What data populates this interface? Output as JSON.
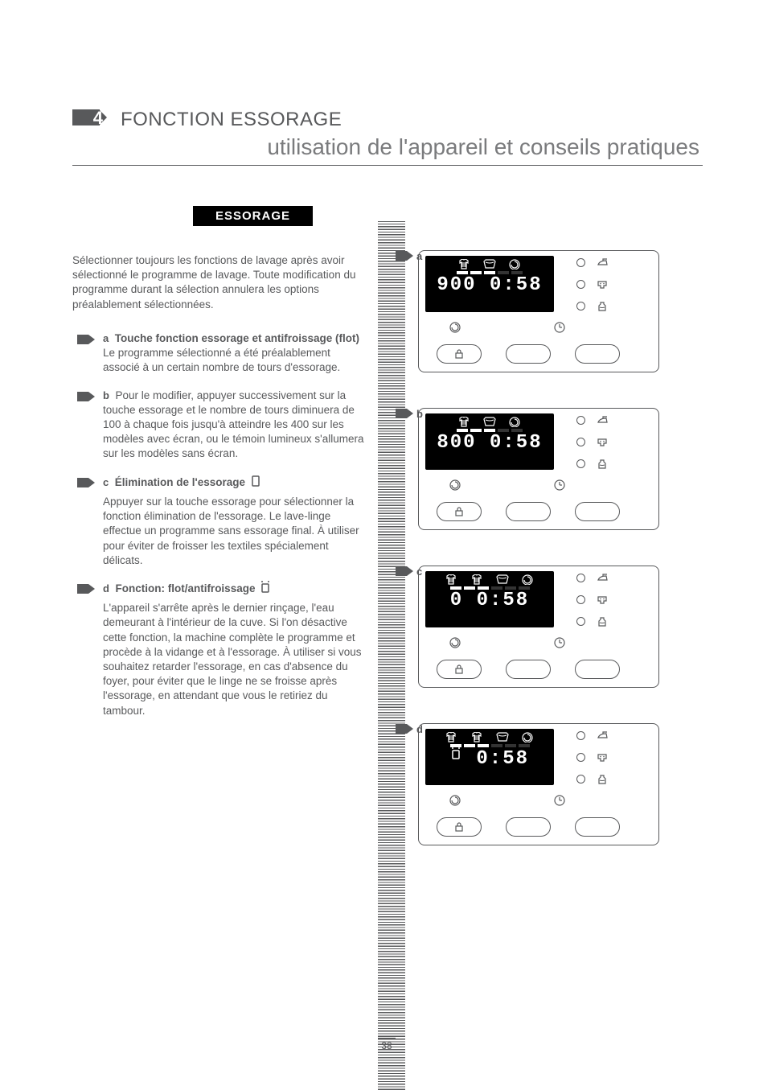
{
  "header": {
    "section_number": "4",
    "section_title": "FONCTION ESSORAGE",
    "subtitle": "utilisation de l'appareil et conseils pratiques"
  },
  "pill_label": "ESSORAGE",
  "intro": "Sélectionner toujours les fonctions de lavage après avoir sélectionné le programme de lavage. Toute modification du programme durant la sélection annulera les options préalablement sélectionnées.",
  "items": [
    {
      "letter": "a",
      "title": "Touche fonction essorage et antifroissage (flot)",
      "body": "Le programme sélectionné a été préalablement associé à un certain nombre de tours d'essorage."
    },
    {
      "letter": "b",
      "title": "",
      "body": "Pour le modifier, appuyer successivement sur la touche essorage et le nombre de tours diminuera de 100 à chaque fois jusqu'à atteindre les 400 sur les modèles avec écran, ou le témoin lumineux s'allumera sur les modèles sans écran."
    },
    {
      "letter": "c",
      "title": "Élimination de l'essorage",
      "icon": "no-spin",
      "body": "Appuyer sur la touche essorage pour sélectionner la fonction élimination de l'essorage. Le lave-linge effectue un programme sans essorage final. À utiliser pour éviter de froisser les textiles spécialement délicats."
    },
    {
      "letter": "d",
      "title": "Fonction: flot/antifroissage",
      "icon": "flot",
      "body": "L'appareil s'arrête après le dernier rinçage, l'eau demeurant à l'intérieur de la cuve. Si l'on désactive cette fonction, la machine complète le programme et procède à la vidange et à l'essorage. À utiliser si vous souhaitez retarder l'essorage, en cas d'absence du foyer, pour éviter que le linge ne se froisse après l'essorage, en attendant que vous le retiriez du tambour."
    }
  ],
  "panels": [
    {
      "letter": "a",
      "lcd_value": "900",
      "lcd_time": "0:58",
      "icon_count": 3
    },
    {
      "letter": "b",
      "lcd_value": "800",
      "lcd_time": "0:58",
      "icon_count": 3
    },
    {
      "letter": "c",
      "lcd_value": "0",
      "lcd_time": "0:58",
      "icon_count": 4
    },
    {
      "letter": "d",
      "lcd_value": "H",
      "lcd_time": "0:58",
      "icon_count": 4,
      "flot": true
    }
  ],
  "page_number": "38",
  "colors": {
    "text": "#58595b",
    "black": "#000000",
    "white": "#ffffff"
  }
}
